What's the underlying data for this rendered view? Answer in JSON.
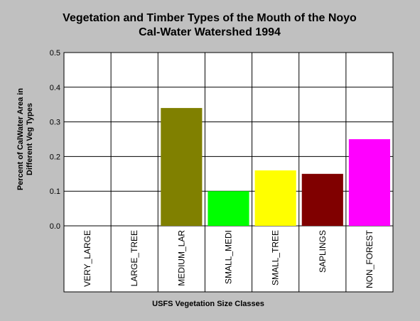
{
  "chart_data": {
    "type": "bar",
    "title": [
      "Vegetation and Timber Types of the Mouth of the Noyo",
      "Cal-Water Watershed 1994"
    ],
    "xlabel": "USFS Vegetation Size Classes",
    "ylabel": [
      "Percent of CalWater Area in",
      "Different Veg Types"
    ],
    "categories": [
      "VERY_LARGE",
      "LARGE_TREE",
      "MEDIUM_LAR",
      "SMALL_MEDI",
      "SMALL_TREE",
      "SAPLINGS",
      "NON_FOREST"
    ],
    "values": [
      0,
      0,
      0.34,
      0.1,
      0.16,
      0.15,
      0.25
    ],
    "colors": [
      "#808000",
      "#808000",
      "#808000",
      "#00ff00",
      "#ffff00",
      "#800000",
      "#ff00ff"
    ],
    "ylim": [
      0,
      0.5
    ],
    "yticks": [
      "0.0",
      "0.1",
      "0.2",
      "0.3",
      "0.4",
      "0.5"
    ],
    "grid": true,
    "background": "#c0c0c0",
    "plot_background": "#ffffff"
  }
}
